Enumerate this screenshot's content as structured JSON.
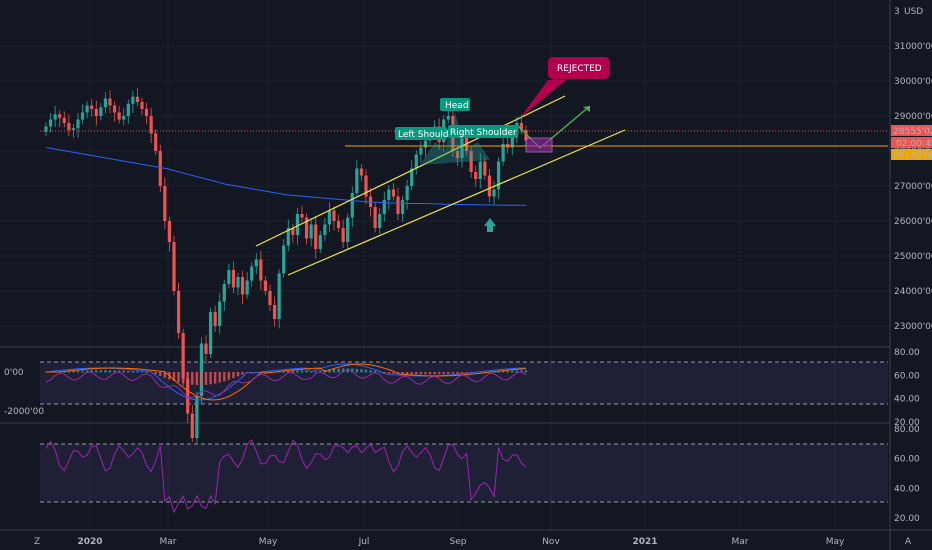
{
  "header": {
    "currency": "USD",
    "corner_value": "3"
  },
  "footer": {
    "left_icon": "Z",
    "right_icon": "A"
  },
  "chart_data": [
    {
      "type": "candlestick",
      "title": "",
      "x_ticks": [
        "2020",
        "Mar",
        "May",
        "Jul",
        "Sep",
        "Nov",
        "2021",
        "Mar",
        "May"
      ],
      "y_ticks": [
        "31000'00",
        "30000'00",
        "29000'00",
        "28000'00",
        "27000'00",
        "26000'00",
        "25000'00",
        "24000'00",
        "23000'00"
      ],
      "ylim": [
        22500,
        32000
      ],
      "price_close": [
        28700,
        28900,
        29050,
        28950,
        28800,
        28600,
        28650,
        28900,
        29100,
        29300,
        29200,
        29000,
        29250,
        29500,
        29300,
        29100,
        28900,
        29000,
        29350,
        29550,
        29400,
        29200,
        29000,
        28500,
        28000,
        27000,
        26000,
        25400,
        24000,
        22800,
        21500,
        20500,
        19800,
        21000,
        22500,
        22200,
        23400,
        23000,
        23700,
        24200,
        24600,
        24100,
        24400,
        23900,
        24300,
        24700,
        24900,
        24300,
        24000,
        23600,
        23200,
        24500,
        25300,
        25800,
        25600,
        26200,
        26100,
        25500,
        25900,
        25200,
        25600,
        25900,
        26300,
        26000,
        25800,
        25400,
        26100,
        26800,
        27500,
        27300,
        26700,
        26400,
        25800,
        26200,
        26600,
        26900,
        26700,
        26200,
        26600,
        27000,
        27500,
        27900,
        28100,
        28300,
        28500,
        28700,
        28250,
        28900,
        29000,
        28000,
        27800,
        28400,
        28000,
        27400,
        27200,
        27700,
        27300,
        26700,
        26900,
        27700,
        28200,
        28100,
        28500,
        28800,
        28600,
        28300
      ],
      "overlays": {
        "moving_average": [
          28100,
          28000,
          27900,
          27800,
          27700,
          27600,
          27500,
          27350,
          27200,
          27050,
          26950,
          26850,
          26750,
          26700,
          26650,
          26600,
          26550,
          26520,
          26500,
          26500,
          26480,
          26470,
          26460,
          26450,
          26450
        ],
        "current_price": 28555.02,
        "support_level": 28149.08,
        "support_level_label": "28149'08",
        "current_price_label": "28555'02",
        "timer_label": "02:00:49",
        "channel_upper": [
          [
            24800,
            25100
          ],
          [
            29300,
            29600
          ]
        ],
        "channel_lower": [
          [
            24400,
            24700
          ],
          [
            28300,
            28600
          ]
        ]
      },
      "annotations": [
        "Left Should",
        "Head",
        "Right Shoulder",
        "REJECTED"
      ]
    },
    {
      "type": "line",
      "name_on_chart": "",
      "y_ticks": [
        "0'00",
        "-2000'00"
      ],
      "right_ticks": [
        "80.00",
        "60.00",
        "40.00",
        "20.00"
      ]
    },
    {
      "type": "line",
      "right_ticks": [
        "80.00",
        "60.00",
        "40.00",
        "20.00"
      ],
      "levels": [
        70,
        30
      ]
    }
  ],
  "colors": {
    "up": "#26a69a",
    "down": "#ef5350",
    "ma": "#2962ff",
    "channel": "#f0e442",
    "support": "#f0a500",
    "rsi": "#9c27b0",
    "tag": "#089981",
    "rejected": "#b2004f"
  }
}
